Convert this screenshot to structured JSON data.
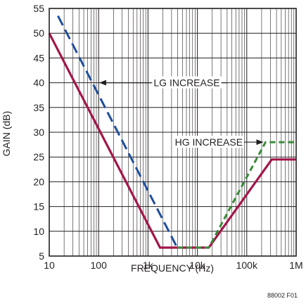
{
  "chart_data": {
    "type": "line",
    "title": "",
    "xlabel": "FREQUENCY (Hz)",
    "ylabel": "GAIN (dB)",
    "x_scale": "log",
    "xlim": [
      10,
      1000000
    ],
    "ylim": [
      5,
      55
    ],
    "x_ticks": [
      10,
      100,
      1000,
      10000,
      100000,
      1000000
    ],
    "x_tick_labels": [
      "10",
      "100",
      "1k",
      "10k",
      "100k",
      "1M"
    ],
    "y_ticks": [
      5,
      10,
      15,
      20,
      25,
      30,
      35,
      40,
      45,
      50,
      55
    ],
    "y_tick_labels": [
      "5",
      "10",
      "15",
      "20",
      "25",
      "30",
      "35",
      "40",
      "45",
      "50",
      "55"
    ],
    "grid": true,
    "series": [
      {
        "color": "#a3164a",
        "style": "solid",
        "x": [
          10,
          1750,
          17000,
          320000,
          1000000
        ],
        "y": [
          50,
          6.7,
          6.7,
          24.5,
          24.5
        ]
      },
      {
        "color": "#1f4e9c",
        "style": "dashed",
        "x": [
          15,
          3900
        ],
        "y": [
          53.5,
          6.7
        ]
      },
      {
        "color": "#3a8a3a",
        "style": "dashed",
        "x": [
          3900,
          17000,
          240000,
          1000000
        ],
        "y": [
          6.7,
          6.7,
          28,
          28
        ]
      }
    ],
    "annotations": [
      {
        "text": "LG INCREASE",
        "x": 1300,
        "y": 40,
        "arrow_to": [
          100,
          40
        ]
      },
      {
        "text": "HG INCREASE",
        "x": 3500,
        "y": 28,
        "arrow_to": [
          240000,
          28
        ]
      }
    ],
    "figure_id": "88002 F01"
  }
}
